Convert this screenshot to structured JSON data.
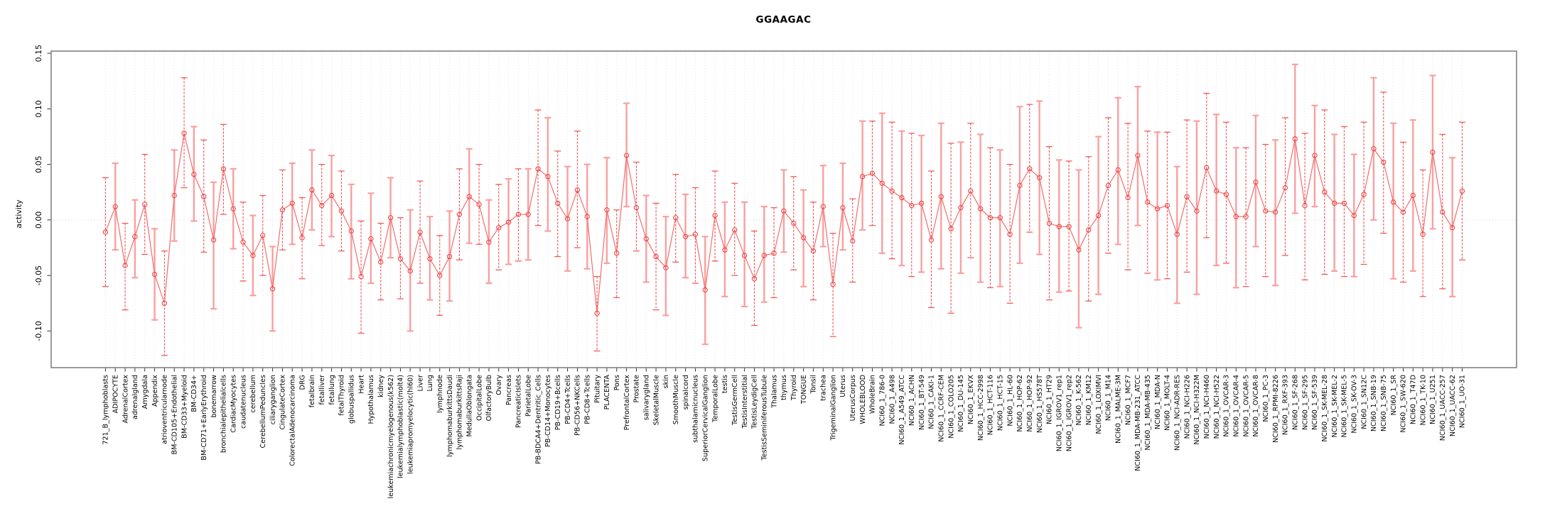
{
  "chart_data": {
    "type": "line",
    "title": "GGAAGAC",
    "ylabel": "activity",
    "xlabel": "",
    "legend": null,
    "grid": "vertical-dotted-per-category-plus-dotted-zero-line",
    "ylim": [
      -0.133,
      0.152
    ],
    "yticks": [
      0.15,
      0.1,
      0.05,
      0.0,
      -0.05,
      -0.1
    ],
    "ytick_labels": [
      "0.15",
      "0.10",
      "0.05",
      "0.00",
      "-0.05",
      "-0.10"
    ],
    "marker": "open-circle",
    "error_bars": true,
    "colors": {
      "line": "#f26d6d",
      "point": "#f04343",
      "bar_dark": "#f25050",
      "bar_light": "#f9a0a0",
      "grid": "#e2e2e2",
      "zero_line": "#d8d8d8",
      "axis_box": "#8f8f8f",
      "tick": "#303030",
      "text": "#000000"
    },
    "points": [
      {
        "label": "721_B_lymphoblasts",
        "value": -0.011,
        "lo": -0.06,
        "hi": 0.038
      },
      {
        "label": "ADIPOCYTE",
        "value": 0.012,
        "lo": -0.027,
        "hi": 0.051
      },
      {
        "label": "AdrenalCortex",
        "value": -0.041,
        "lo": -0.081,
        "hi": -0.003
      },
      {
        "label": "adrenalgland",
        "value": -0.015,
        "lo": -0.052,
        "hi": 0.018
      },
      {
        "label": "Amygdala",
        "value": 0.014,
        "lo": -0.031,
        "hi": 0.059
      },
      {
        "label": "Appendix",
        "value": -0.049,
        "lo": -0.09,
        "hi": -0.008
      },
      {
        "label": "atrioventricularnode",
        "value": -0.075,
        "lo": -0.122,
        "hi": -0.028
      },
      {
        "label": "BM-CD105+Endothelial",
        "value": 0.022,
        "lo": -0.019,
        "hi": 0.063
      },
      {
        "label": "BM-CD33+Myeloid",
        "value": 0.078,
        "lo": 0.029,
        "hi": 0.128
      },
      {
        "label": "BM-CD34+",
        "value": 0.041,
        "lo": -0.001,
        "hi": 0.084
      },
      {
        "label": "BM-CD71+EarlyErythroid",
        "value": 0.021,
        "lo": -0.029,
        "hi": 0.072
      },
      {
        "label": "bonemarrow",
        "value": -0.018,
        "lo": -0.08,
        "hi": 0.034
      },
      {
        "label": "bronchialepithelialcells",
        "value": 0.046,
        "lo": 0.005,
        "hi": 0.086
      },
      {
        "label": "CardiacMyocytes",
        "value": 0.01,
        "lo": -0.026,
        "hi": 0.046
      },
      {
        "label": "caudatenucleus",
        "value": -0.02,
        "lo": -0.055,
        "hi": 0.016
      },
      {
        "label": "cerebellum",
        "value": -0.032,
        "lo": -0.068,
        "hi": 0.004
      },
      {
        "label": "CerebellumPeduncles",
        "value": -0.014,
        "lo": -0.05,
        "hi": 0.022
      },
      {
        "label": "ciliaryganglion",
        "value": -0.062,
        "lo": -0.1,
        "hi": -0.024
      },
      {
        "label": "CingulateCortex",
        "value": 0.009,
        "lo": -0.027,
        "hi": 0.045
      },
      {
        "label": "ColorectalAdenocarcinoma",
        "value": 0.015,
        "lo": -0.022,
        "hi": 0.051
      },
      {
        "label": "DRG",
        "value": -0.016,
        "lo": -0.053,
        "hi": 0.02
      },
      {
        "label": "fetalbrain",
        "value": 0.027,
        "lo": -0.009,
        "hi": 0.063
      },
      {
        "label": "fetalliver",
        "value": 0.013,
        "lo": -0.023,
        "hi": 0.05
      },
      {
        "label": "fetallung",
        "value": 0.022,
        "lo": -0.015,
        "hi": 0.058
      },
      {
        "label": "fetalThyroid",
        "value": 0.008,
        "lo": -0.028,
        "hi": 0.044
      },
      {
        "label": "globuspallidus",
        "value": -0.01,
        "lo": -0.053,
        "hi": 0.032
      },
      {
        "label": "Heart",
        "value": -0.051,
        "lo": -0.102,
        "hi": -0.001
      },
      {
        "label": "Hypothalamus",
        "value": -0.017,
        "lo": -0.057,
        "hi": 0.024
      },
      {
        "label": "kidney",
        "value": -0.038,
        "lo": -0.072,
        "hi": -0.003
      },
      {
        "label": "leukemiachronicmyelogenous(k562)",
        "value": 0.002,
        "lo": -0.034,
        "hi": 0.038
      },
      {
        "label": "leukemialymphoblastic(molt4)",
        "value": -0.035,
        "lo": -0.071,
        "hi": 0.002
      },
      {
        "label": "leukemiapromyelocytic(hl60)",
        "value": -0.046,
        "lo": -0.1,
        "hi": 0.009
      },
      {
        "label": "Liver",
        "value": -0.011,
        "lo": -0.057,
        "hi": 0.035
      },
      {
        "label": "Lung",
        "value": -0.035,
        "lo": -0.072,
        "hi": 0.003
      },
      {
        "label": "lymphnode",
        "value": -0.05,
        "lo": -0.086,
        "hi": -0.014
      },
      {
        "label": "lymphomaburkittsDaudi",
        "value": -0.033,
        "lo": -0.073,
        "hi": 0.008
      },
      {
        "label": "lymphomaburkittsRaji",
        "value": 0.005,
        "lo": -0.036,
        "hi": 0.046
      },
      {
        "label": "MedullaOblongata",
        "value": 0.021,
        "lo": -0.021,
        "hi": 0.064
      },
      {
        "label": "OccipitalLobe",
        "value": 0.014,
        "lo": -0.022,
        "hi": 0.05
      },
      {
        "label": "OlfactoryBulb",
        "value": -0.02,
        "lo": -0.057,
        "hi": 0.018
      },
      {
        "label": "Ovary",
        "value": -0.007,
        "lo": -0.045,
        "hi": 0.032
      },
      {
        "label": "Pancreas",
        "value": -0.002,
        "lo": -0.04,
        "hi": 0.037
      },
      {
        "label": "PancreaticIslets",
        "value": 0.005,
        "lo": -0.037,
        "hi": 0.046
      },
      {
        "label": "ParietalLobe",
        "value": 0.005,
        "lo": -0.036,
        "hi": 0.046
      },
      {
        "label": "PB-BDCA4+Dentritic_Cells",
        "value": 0.046,
        "lo": -0.005,
        "hi": 0.099
      },
      {
        "label": "PB-CD14+Monocytes",
        "value": 0.039,
        "lo": -0.01,
        "hi": 0.092
      },
      {
        "label": "PB-CD19+Bcells",
        "value": 0.015,
        "lo": -0.033,
        "hi": 0.062
      },
      {
        "label": "PB-CD4+Tcells",
        "value": 0.001,
        "lo": -0.046,
        "hi": 0.048
      },
      {
        "label": "PB-CD56+NKCells",
        "value": 0.027,
        "lo": -0.025,
        "hi": 0.08
      },
      {
        "label": "PB-CD8+Tcells",
        "value": 0.003,
        "lo": -0.044,
        "hi": 0.05
      },
      {
        "label": "Pituitary",
        "value": -0.084,
        "lo": -0.118,
        "hi": -0.051
      },
      {
        "label": "PLACENTA",
        "value": 0.009,
        "lo": -0.039,
        "hi": 0.056
      },
      {
        "label": "Pons",
        "value": -0.03,
        "lo": -0.07,
        "hi": 0.009
      },
      {
        "label": "PrefrontalCortex",
        "value": 0.058,
        "lo": 0.012,
        "hi": 0.105
      },
      {
        "label": "Prostate",
        "value": 0.011,
        "lo": -0.028,
        "hi": 0.052
      },
      {
        "label": "salivarygland",
        "value": -0.017,
        "lo": -0.056,
        "hi": 0.022
      },
      {
        "label": "SkeletalMuscle",
        "value": -0.033,
        "lo": -0.081,
        "hi": 0.015
      },
      {
        "label": "skin",
        "value": -0.043,
        "lo": -0.086,
        "hi": 0.003
      },
      {
        "label": "SmoothMuscle",
        "value": 0.002,
        "lo": -0.038,
        "hi": 0.041
      },
      {
        "label": "spinalcord",
        "value": -0.015,
        "lo": -0.052,
        "hi": 0.023
      },
      {
        "label": "subthalamicnucleus",
        "value": -0.013,
        "lo": -0.057,
        "hi": 0.029
      },
      {
        "label": "SuperiorCervicalGanglion",
        "value": -0.063,
        "lo": -0.112,
        "hi": -0.015
      },
      {
        "label": "TemporalLobe",
        "value": 0.004,
        "lo": -0.037,
        "hi": 0.044
      },
      {
        "label": "testis",
        "value": -0.027,
        "lo": -0.069,
        "hi": 0.016
      },
      {
        "label": "TestisGermCell",
        "value": -0.009,
        "lo": -0.05,
        "hi": 0.033
      },
      {
        "label": "TestisInterstitial",
        "value": -0.032,
        "lo": -0.078,
        "hi": 0.016
      },
      {
        "label": "TestisLeydigCell",
        "value": -0.053,
        "lo": -0.095,
        "hi": -0.01
      },
      {
        "label": "TestisSeminiferousTubule",
        "value": -0.032,
        "lo": -0.074,
        "hi": 0.012
      },
      {
        "label": "Thalamus",
        "value": -0.03,
        "lo": -0.07,
        "hi": 0.011
      },
      {
        "label": "thymus",
        "value": 0.008,
        "lo": -0.029,
        "hi": 0.045
      },
      {
        "label": "Thyroid",
        "value": -0.003,
        "lo": -0.045,
        "hi": 0.039
      },
      {
        "label": "TONGUE",
        "value": -0.016,
        "lo": -0.06,
        "hi": 0.027
      },
      {
        "label": "Tonsil",
        "value": -0.028,
        "lo": -0.072,
        "hi": 0.016
      },
      {
        "label": "trachea",
        "value": 0.012,
        "lo": -0.024,
        "hi": 0.049
      },
      {
        "label": "TrigeminalGanglion",
        "value": -0.058,
        "lo": -0.105,
        "hi": -0.012
      },
      {
        "label": "Uterus",
        "value": 0.011,
        "lo": -0.027,
        "hi": 0.051
      },
      {
        "label": "UterusCorpus",
        "value": -0.019,
        "lo": -0.056,
        "hi": 0.019
      },
      {
        "label": "WHOLEBLOOD",
        "value": 0.039,
        "lo": -0.009,
        "hi": 0.089
      },
      {
        "label": "WholeBrain",
        "value": 0.042,
        "lo": -0.005,
        "hi": 0.089
      },
      {
        "label": "NCI60_1_786-0",
        "value": 0.033,
        "lo": -0.03,
        "hi": 0.096
      },
      {
        "label": "NCI60_1_A498",
        "value": 0.026,
        "lo": -0.035,
        "hi": 0.088
      },
      {
        "label": "NCI60_1_A549_ATCC",
        "value": 0.02,
        "lo": -0.041,
        "hi": 0.08
      },
      {
        "label": "NCI60_1_ACHN",
        "value": 0.013,
        "lo": -0.051,
        "hi": 0.078
      },
      {
        "label": "NCI60_1_BT-549",
        "value": 0.015,
        "lo": -0.047,
        "hi": 0.076
      },
      {
        "label": "NCI60_1_CAKI-1",
        "value": -0.018,
        "lo": -0.079,
        "hi": 0.044
      },
      {
        "label": "NCI60_1_CCRF-CEM",
        "value": 0.021,
        "lo": -0.044,
        "hi": 0.087
      },
      {
        "label": "NCI60_1_COLO205",
        "value": -0.008,
        "lo": -0.084,
        "hi": 0.069
      },
      {
        "label": "NCI60_1_DU-145",
        "value": 0.011,
        "lo": -0.048,
        "hi": 0.07
      },
      {
        "label": "NCI60_1_EKVX",
        "value": 0.026,
        "lo": -0.034,
        "hi": 0.087
      },
      {
        "label": "NCI60_1_HCC-2998",
        "value": 0.01,
        "lo": -0.056,
        "hi": 0.077
      },
      {
        "label": "NCI60_1_HCT-116",
        "value": 0.002,
        "lo": -0.061,
        "hi": 0.065
      },
      {
        "label": "NCI60_1_HCT-15",
        "value": 0.002,
        "lo": -0.06,
        "hi": 0.063
      },
      {
        "label": "NCI60_1_HL-60",
        "value": -0.013,
        "lo": -0.075,
        "hi": 0.05
      },
      {
        "label": "NCI60_1_HOP-62",
        "value": 0.031,
        "lo": -0.039,
        "hi": 0.102
      },
      {
        "label": "NCI60_1_HOP-92",
        "value": 0.046,
        "lo": -0.011,
        "hi": 0.104
      },
      {
        "label": "NCI60_1_HS578T",
        "value": 0.038,
        "lo": -0.031,
        "hi": 0.107
      },
      {
        "label": "NCI60_1_HT29",
        "value": -0.003,
        "lo": -0.072,
        "hi": 0.066
      },
      {
        "label": "NCI60_1_IGROV1_rep1",
        "value": -0.006,
        "lo": -0.065,
        "hi": 0.054
      },
      {
        "label": "NCI60_1_IGROV1_rep2",
        "value": -0.006,
        "lo": -0.064,
        "hi": 0.053
      },
      {
        "label": "NCI60_1_K-562",
        "value": -0.027,
        "lo": -0.097,
        "hi": 0.045
      },
      {
        "label": "NCI60_1_KM12",
        "value": -0.009,
        "lo": -0.073,
        "hi": 0.057
      },
      {
        "label": "NCI60_1_LOXIMVI",
        "value": 0.004,
        "lo": -0.067,
        "hi": 0.075
      },
      {
        "label": "NCI60_1_M14",
        "value": 0.031,
        "lo": -0.03,
        "hi": 0.092
      },
      {
        "label": "NCI60_1_MALME-3M",
        "value": 0.045,
        "lo": -0.022,
        "hi": 0.11
      },
      {
        "label": "NCI60_1_MCF7",
        "value": 0.02,
        "lo": -0.045,
        "hi": 0.087
      },
      {
        "label": "NCI60_1_MDA-MB-231_ATCC",
        "value": 0.058,
        "lo": -0.005,
        "hi": 0.12
      },
      {
        "label": "NCI60_1_MDA-MB-435",
        "value": 0.016,
        "lo": -0.048,
        "hi": 0.08
      },
      {
        "label": "NCI60_1_MDA-N",
        "value": 0.01,
        "lo": -0.054,
        "hi": 0.079
      },
      {
        "label": "NCI60_1_MOLT-4",
        "value": 0.013,
        "lo": -0.053,
        "hi": 0.079
      },
      {
        "label": "NCI60_1_NCI-ADR-RES",
        "value": -0.013,
        "lo": -0.075,
        "hi": 0.048
      },
      {
        "label": "NCI60_1_NCI-H226",
        "value": 0.021,
        "lo": -0.047,
        "hi": 0.09
      },
      {
        "label": "NCI60_1_NCI-H322M",
        "value": 0.008,
        "lo": -0.067,
        "hi": 0.089
      },
      {
        "label": "NCI60_1_NCI-H460",
        "value": 0.047,
        "lo": -0.016,
        "hi": 0.114
      },
      {
        "label": "NCI60_1_NCI-H522",
        "value": 0.026,
        "lo": -0.041,
        "hi": 0.095
      },
      {
        "label": "NCI60_1_OVCAR-3",
        "value": 0.023,
        "lo": -0.039,
        "hi": 0.088
      },
      {
        "label": "NCI60_1_OVCAR-4",
        "value": 0.003,
        "lo": -0.061,
        "hi": 0.065
      },
      {
        "label": "NCI60_1_OVCAR-5",
        "value": 0.003,
        "lo": -0.06,
        "hi": 0.065
      },
      {
        "label": "NCI60_1_OVCAR-8",
        "value": 0.034,
        "lo": -0.024,
        "hi": 0.094
      },
      {
        "label": "NCI60_1_PC-3",
        "value": 0.008,
        "lo": -0.051,
        "hi": 0.068
      },
      {
        "label": "NCI60_1_RPMI-8226",
        "value": 0.007,
        "lo": -0.059,
        "hi": 0.072
      },
      {
        "label": "NCI60_1_RXF-393",
        "value": 0.029,
        "lo": -0.032,
        "hi": 0.092
      },
      {
        "label": "NCI60_1_SF-268",
        "value": 0.073,
        "lo": 0.006,
        "hi": 0.14
      },
      {
        "label": "NCI60_1_SF-295",
        "value": 0.013,
        "lo": -0.054,
        "hi": 0.078
      },
      {
        "label": "NCI60_1_SF-539",
        "value": 0.058,
        "lo": 0.012,
        "hi": 0.103
      },
      {
        "label": "NCI60_1_SK-MEL-28",
        "value": 0.025,
        "lo": -0.049,
        "hi": 0.099
      },
      {
        "label": "NCI60_1_SK-MEL-2",
        "value": 0.015,
        "lo": -0.046,
        "hi": 0.077
      },
      {
        "label": "NCI60_1_SK-MEL-5",
        "value": 0.015,
        "lo": -0.051,
        "hi": 0.084
      },
      {
        "label": "NCI60_1_SK-OV-3",
        "value": 0.004,
        "lo": -0.051,
        "hi": 0.059
      },
      {
        "label": "NCI60_1_SN12C",
        "value": 0.023,
        "lo": -0.04,
        "hi": 0.088
      },
      {
        "label": "NCI60_1_SNB-19",
        "value": 0.064,
        "lo": 0.0,
        "hi": 0.128
      },
      {
        "label": "NCI60_1_SNB-75",
        "value": 0.052,
        "lo": -0.012,
        "hi": 0.115
      },
      {
        "label": "NCI60_1_SR",
        "value": 0.016,
        "lo": -0.053,
        "hi": 0.087
      },
      {
        "label": "NCI60_1_SW-620",
        "value": 0.007,
        "lo": -0.056,
        "hi": 0.07
      },
      {
        "label": "NCI60_1_T47D",
        "value": 0.022,
        "lo": -0.046,
        "hi": 0.09
      },
      {
        "label": "NCI60_1_TK-10",
        "value": -0.013,
        "lo": -0.069,
        "hi": 0.045
      },
      {
        "label": "NCI60_1_U251",
        "value": 0.061,
        "lo": -0.008,
        "hi": 0.13
      },
      {
        "label": "NCI60_1_UACC-257",
        "value": 0.007,
        "lo": -0.062,
        "hi": 0.077
      },
      {
        "label": "NCI60_1_UACC-62",
        "value": -0.007,
        "lo": -0.069,
        "hi": 0.056
      },
      {
        "label": "NCI60_1_UO-31",
        "value": 0.026,
        "lo": -0.036,
        "hi": 0.088
      }
    ]
  }
}
